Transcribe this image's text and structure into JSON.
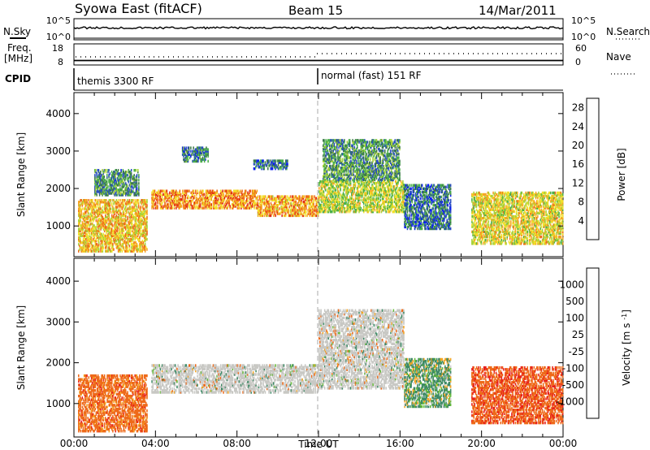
{
  "header": {
    "station": "Syowa East (fitACF)",
    "beam": "Beam 15",
    "date": "14/Mar/2011"
  },
  "small_panels": {
    "nsky_label": "N.Sky",
    "nsky_ticks": [
      "10^5",
      "10^0"
    ],
    "nsearch_label": "N.Search",
    "nsearch_ticks": [
      "10^5",
      "10^0"
    ],
    "freq_label_1": "Freq.",
    "freq_label_2": "[MHz]",
    "freq_ticks": [
      "18",
      "8"
    ],
    "nave_label": "Nave",
    "nave_ticks": [
      "60",
      "0"
    ],
    "cpid_label": "CPID",
    "cpid_segments": [
      {
        "start_hour": 0,
        "label": "themis 3300 RF"
      },
      {
        "start_hour": 12,
        "label": "normal (fast) 151 RF"
      }
    ]
  },
  "colors": {
    "power_scale": [
      "#0a1ef0",
      "#2a4fc0",
      "#3d7a4a",
      "#4bb04a",
      "#a8d23a",
      "#f2e02a",
      "#f5a623",
      "#ee6a1a",
      "#e02b14"
    ],
    "velocity_scale": [
      "#e8201c",
      "#ee6a1a",
      "#f5a623",
      "#cfcfcf",
      "#cfcfcf",
      "#66bb3a",
      "#3e8a66",
      "#2a62b5",
      "#2a3fc8"
    ],
    "ground_scatter": "#c8c8c4"
  },
  "chart_data": [
    {
      "type": "heatmap",
      "title": "",
      "xlabel": "Time UT",
      "ylabel": "Slant Range [km]",
      "x_range_hours": [
        0,
        24
      ],
      "x_ticks": [
        "00:00",
        "04:00",
        "08:00",
        "12:00",
        "16:00",
        "20:00",
        "00:00"
      ],
      "ylim": [
        180,
        4560
      ],
      "y_ticks": [
        "1000",
        "2000",
        "3000",
        "4000"
      ],
      "colorbar_label": "Power [dB]",
      "colorbar_ticks": [
        "4",
        "8",
        "12",
        "16",
        "20",
        "24",
        "28"
      ],
      "colorbar_range": [
        0,
        30
      ],
      "regions": [
        {
          "t0": 0.2,
          "t1": 3.6,
          "r0": 300,
          "r1": 1700,
          "value": 20
        },
        {
          "t0": 1.0,
          "t1": 3.2,
          "r0": 1800,
          "r1": 2500,
          "value": 9
        },
        {
          "t0": 3.8,
          "t1": 9.0,
          "r0": 1450,
          "r1": 1950,
          "value": 23
        },
        {
          "t0": 9.0,
          "t1": 12.0,
          "r0": 1250,
          "r1": 1800,
          "value": 22
        },
        {
          "t0": 12.0,
          "t1": 16.2,
          "r0": 1350,
          "r1": 2200,
          "value": 16
        },
        {
          "t0": 12.2,
          "t1": 16.0,
          "r0": 2200,
          "r1": 3300,
          "value": 10
        },
        {
          "t0": 5.3,
          "t1": 6.6,
          "r0": 2700,
          "r1": 3100,
          "value": 8
        },
        {
          "t0": 8.8,
          "t1": 10.5,
          "r0": 2500,
          "r1": 2750,
          "value": 7
        },
        {
          "t0": 16.2,
          "t1": 18.5,
          "r0": 900,
          "r1": 2100,
          "value": 7
        },
        {
          "t0": 19.5,
          "t1": 24.0,
          "r0": 500,
          "r1": 1900,
          "value": 18
        }
      ]
    },
    {
      "type": "heatmap",
      "title": "",
      "xlabel": "Time UT",
      "ylabel": "Slant Range [km]",
      "x_range_hours": [
        0,
        24
      ],
      "x_ticks": [
        "00:00",
        "04:00",
        "08:00",
        "12:00",
        "16:00",
        "20:00",
        "00:00"
      ],
      "ylim": [
        180,
        4560
      ],
      "y_ticks": [
        "1000",
        "2000",
        "3000",
        "4000"
      ],
      "colorbar_label": "Velocity [m s^-1]",
      "colorbar_ticks": [
        "1000",
        "500",
        "100",
        "25",
        "-25",
        "-100",
        "-500",
        "-1000"
      ],
      "regions": [
        {
          "t0": 0.2,
          "t1": 3.6,
          "r0": 300,
          "r1": 1700,
          "value": -300,
          "ground_scatter": false
        },
        {
          "t0": 3.8,
          "t1": 12.0,
          "r0": 1250,
          "r1": 1950,
          "value": 0,
          "ground_scatter": true
        },
        {
          "t0": 12.0,
          "t1": 16.2,
          "r0": 1350,
          "r1": 3300,
          "value": 0,
          "ground_scatter": true
        },
        {
          "t0": 16.2,
          "t1": 18.5,
          "r0": 900,
          "r1": 2100,
          "value": 150,
          "ground_scatter": false
        },
        {
          "t0": 19.5,
          "t1": 24.0,
          "r0": 500,
          "r1": 1900,
          "value": -400,
          "ground_scatter": false
        }
      ]
    }
  ]
}
